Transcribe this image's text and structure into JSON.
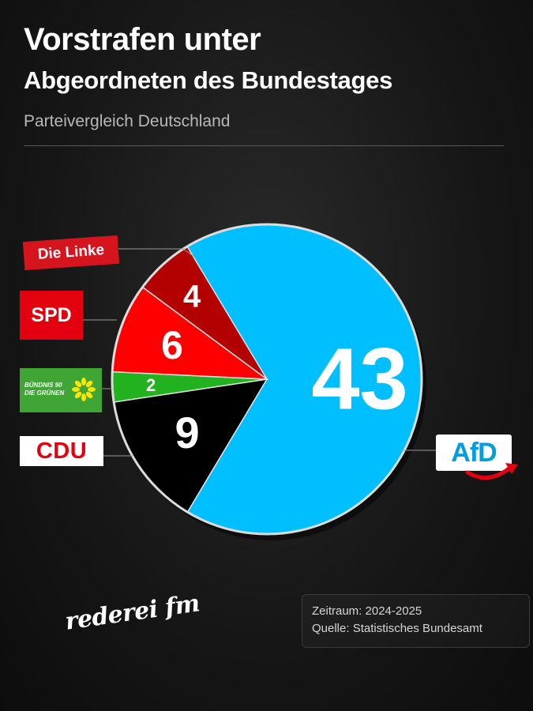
{
  "header": {
    "title_line1": "Vorstrafen unter",
    "title_line2": "Abgeordneten des Bundestages",
    "subtitle": "Parteivergleich Deutschland"
  },
  "chart_data": {
    "type": "pie",
    "title": "Vorstrafen unter Abgeordneten des Bundestages",
    "subtitle": "Parteivergleich Deutschland",
    "slices": [
      {
        "party": "AfD",
        "value": 43,
        "color": "#00bfff",
        "label_color": "#ffffff"
      },
      {
        "party": "CDU",
        "value": 9,
        "color": "#000000",
        "label_color": "#ffffff"
      },
      {
        "party": "Bündnis 90 / Die Grünen",
        "value": 2,
        "color": "#22b21f",
        "label_color": "#ffffff"
      },
      {
        "party": "SPD",
        "value": 6,
        "color": "#ff0000",
        "label_color": "#ffffff"
      },
      {
        "party": "Die Linke",
        "value": 4,
        "color": "#b30000",
        "label_color": "#ffffff"
      }
    ]
  },
  "logos": {
    "linke": "Die Linke",
    "spd": "SPD",
    "gruene_line1": "BÜNDNIS 90",
    "gruene_line2": "DIE GRÜNEN",
    "cdu": "CDU",
    "afd": "AfD"
  },
  "watermark": "rederei fm",
  "footer": {
    "period": "Zeitraum: 2024-2025",
    "source": "Quelle: Statistisches Bundesamt"
  },
  "colors": {
    "background": "#161616",
    "afd_blue": "#00bfff",
    "spd_red": "#ff0000",
    "linke_darkred": "#b30000",
    "gruene_green": "#22b21f"
  }
}
